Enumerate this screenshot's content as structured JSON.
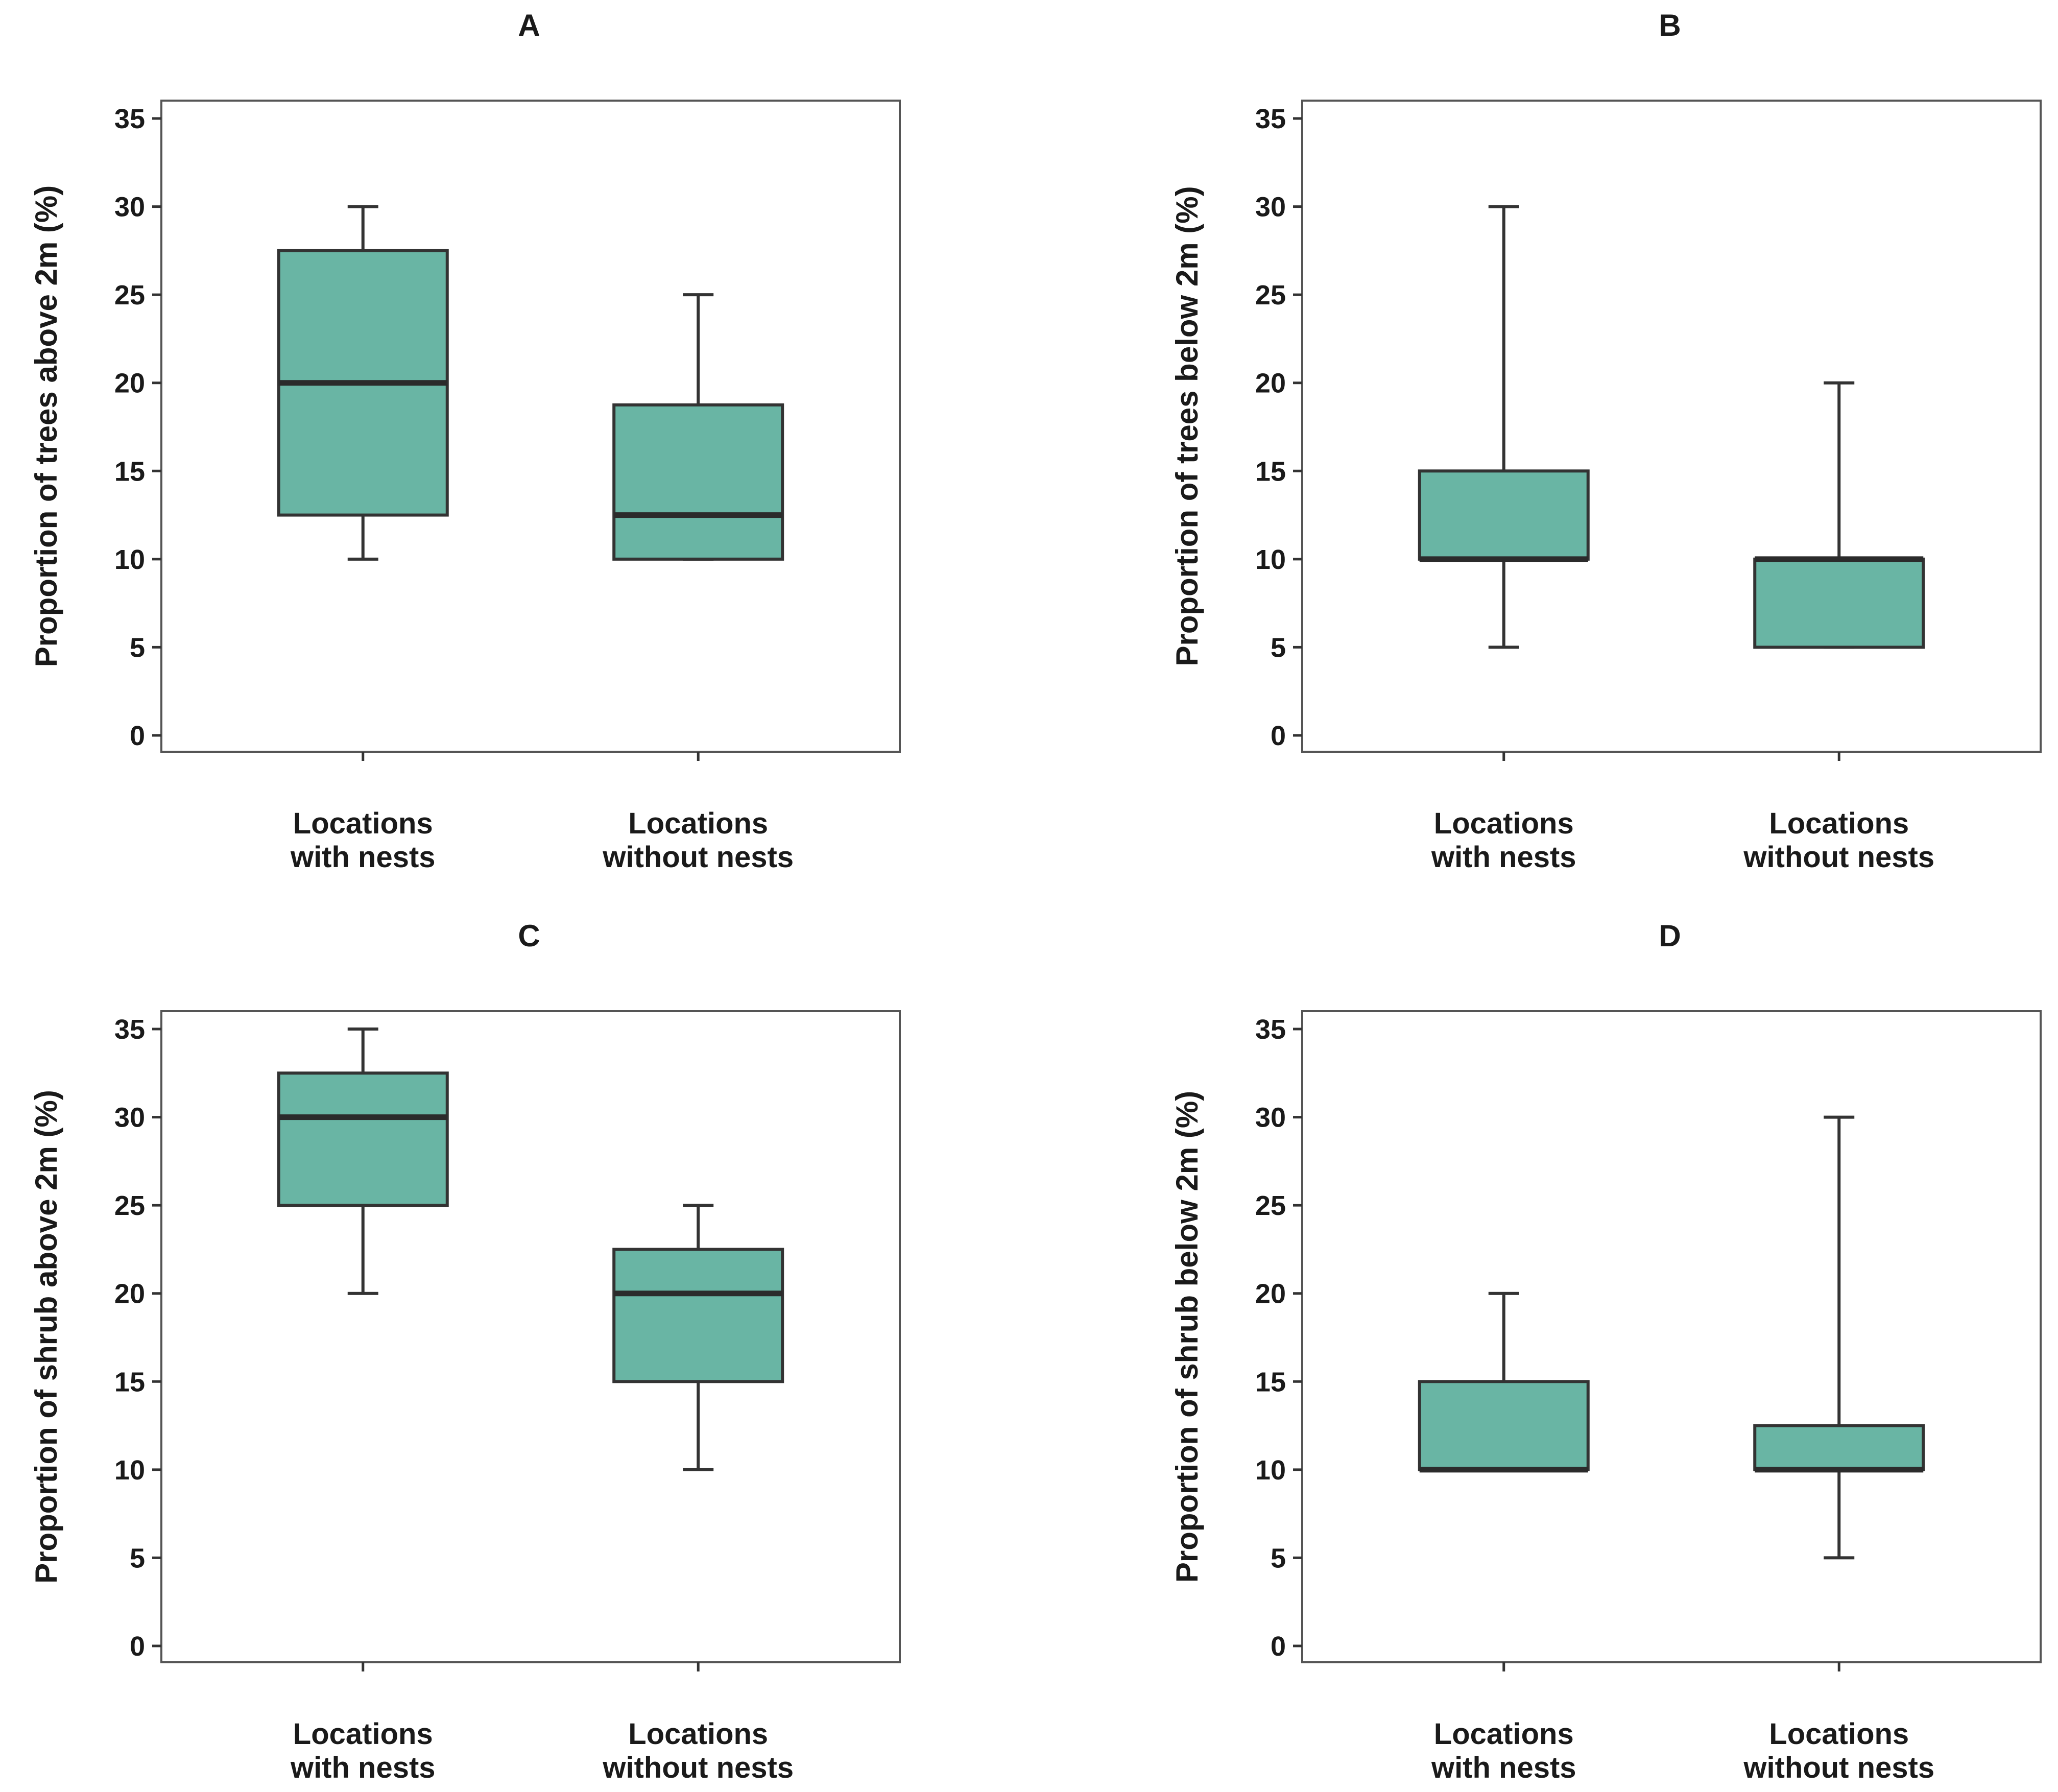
{
  "chart_data": [
    {
      "type": "box",
      "title": "A",
      "xlabel": "",
      "ylabel": "Proportion of trees above 2m (%)",
      "categories": [
        "Locations\nwith nests",
        "Locations\nwithout nests"
      ],
      "ylim": [
        0,
        35
      ],
      "yticks": [
        0,
        5,
        10,
        15,
        20,
        25,
        30,
        35
      ],
      "boxes": [
        {
          "category": "Locations with nests",
          "min": 10,
          "q1": 12.5,
          "median": 20,
          "q3": 27.5,
          "max": 30
        },
        {
          "category": "Locations without nests",
          "min": 10,
          "q1": 10,
          "median": 12.5,
          "q3": 18.75,
          "max": 25
        }
      ],
      "fill_color": "#69b5a4",
      "grid": false
    },
    {
      "type": "box",
      "title": "B",
      "xlabel": "",
      "ylabel": "Proportion of trees below 2m (%)",
      "categories": [
        "Locations\nwith nests",
        "Locations\nwithout nests"
      ],
      "ylim": [
        0,
        35
      ],
      "yticks": [
        0,
        5,
        10,
        15,
        20,
        25,
        30,
        35
      ],
      "boxes": [
        {
          "category": "Locations with nests",
          "min": 5,
          "q1": 10,
          "median": 10,
          "q3": 15,
          "max": 30
        },
        {
          "category": "Locations without nests",
          "min": 5,
          "q1": 5,
          "median": 10,
          "q3": 10,
          "max": 20
        }
      ],
      "fill_color": "#69b5a4",
      "grid": false
    },
    {
      "type": "box",
      "title": "C",
      "xlabel": "",
      "ylabel": "Proportion of shrub above 2m (%)",
      "categories": [
        "Locations\nwith nests",
        "Locations\nwithout nests"
      ],
      "ylim": [
        0,
        35
      ],
      "yticks": [
        0,
        5,
        10,
        15,
        20,
        25,
        30,
        35
      ],
      "boxes": [
        {
          "category": "Locations with nests",
          "min": 20,
          "q1": 25,
          "median": 30,
          "q3": 32.5,
          "max": 35
        },
        {
          "category": "Locations without nests",
          "min": 10,
          "q1": 15,
          "median": 20,
          "q3": 22.5,
          "max": 25
        }
      ],
      "fill_color": "#69b5a4",
      "grid": false
    },
    {
      "type": "box",
      "title": "D",
      "xlabel": "",
      "ylabel": "Proportion of shrub below 2m (%)",
      "categories": [
        "Locations\nwith nests",
        "Locations\nwithout nests"
      ],
      "ylim": [
        0,
        35
      ],
      "yticks": [
        0,
        5,
        10,
        15,
        20,
        25,
        30,
        35
      ],
      "boxes": [
        {
          "category": "Locations with nests",
          "min": 10,
          "q1": 10,
          "median": 10,
          "q3": 15,
          "max": 20
        },
        {
          "category": "Locations without nests",
          "min": 5,
          "q1": 10,
          "median": 10,
          "q3": 12.5,
          "max": 30
        }
      ],
      "fill_color": "#69b5a4",
      "grid": false
    }
  ]
}
